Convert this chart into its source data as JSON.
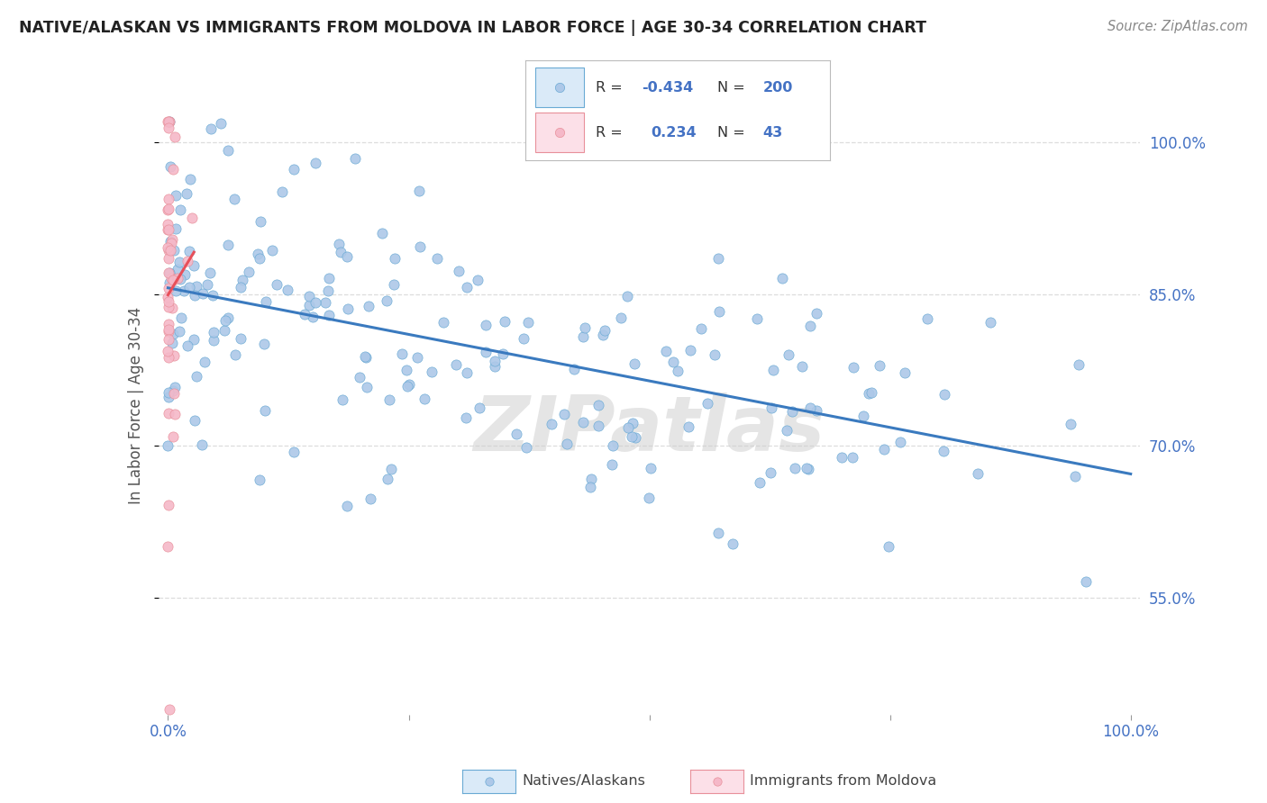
{
  "title": "NATIVE/ALASKAN VS IMMIGRANTS FROM MOLDOVA IN LABOR FORCE | AGE 30-34 CORRELATION CHART",
  "source": "Source: ZipAtlas.com",
  "ylabel": "In Labor Force | Age 30-34",
  "ytick_labels": [
    "100.0%",
    "85.0%",
    "70.0%",
    "55.0%"
  ],
  "ytick_values": [
    1.0,
    0.85,
    0.7,
    0.55
  ],
  "xlim": [
    -0.01,
    1.01
  ],
  "ylim": [
    0.435,
    1.045
  ],
  "native_R": -0.434,
  "native_N": 200,
  "moldova_R": 0.234,
  "moldova_N": 43,
  "native_color": "#adc8e8",
  "native_edge_color": "#6aaad4",
  "native_line_color": "#3a7abf",
  "moldova_color": "#f5b8c8",
  "moldova_edge_color": "#e8909a",
  "moldova_line_color": "#e8505a",
  "watermark": "ZIPatlas",
  "watermark_color": "#cccccc",
  "watermark_alpha": 0.5,
  "legend_box_native_fill": "#daeaf8",
  "legend_box_moldova_fill": "#fce0e8",
  "legend_border_color": "#cccccc",
  "background_color": "#ffffff",
  "grid_color": "#dddddd",
  "tick_color": "#4472c4",
  "title_color": "#222222",
  "ylabel_color": "#555555",
  "native_label": "Natives/Alaskans",
  "moldova_label": "Immigrants from Moldova",
  "legend_r_color": "#4472c4",
  "legend_n_color": "#4472c4",
  "legend_label_color": "#333333"
}
